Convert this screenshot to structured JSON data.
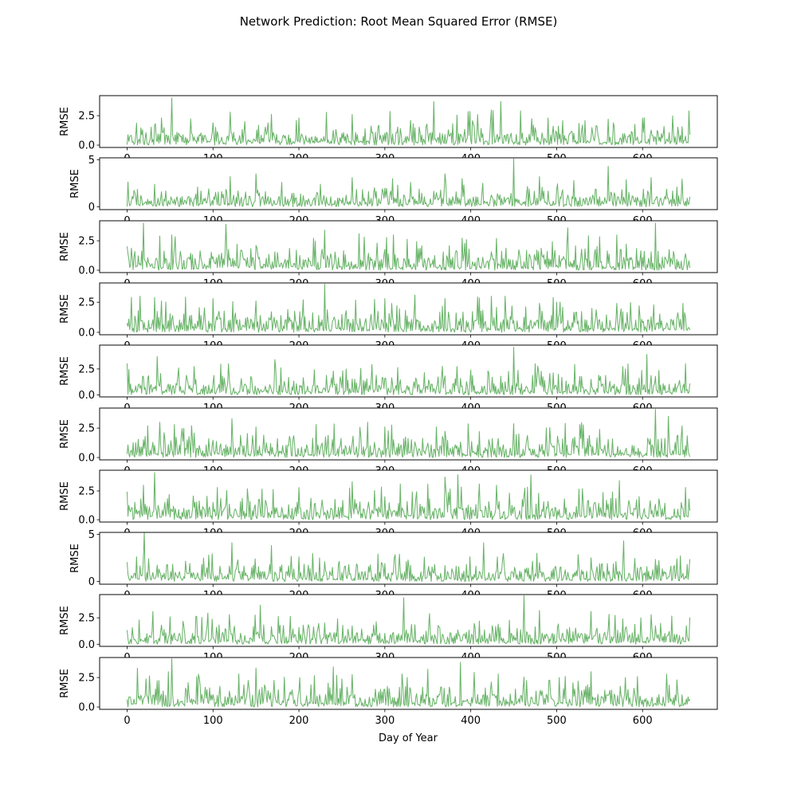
{
  "figure": {
    "title": "Network Prediction: Root Mean Squared Error (RMSE)",
    "line_color": "#6ab46a"
  },
  "chart_data": {
    "type": "line",
    "title": "Network Prediction: Root Mean Squared Error (RMSE)",
    "xlabel": "Day of Year",
    "ylabel": "RMSE",
    "x_range": [
      0,
      655
    ],
    "xlim": [
      -32,
      687
    ],
    "xticks": [
      0,
      100,
      200,
      300,
      400,
      500,
      600
    ],
    "grid": false,
    "panels": [
      {
        "ylim": [
          -0.2,
          4.2
        ],
        "yticks": [
          0.0,
          2.5
        ],
        "ytick_labels": [
          "0.0",
          "2.5"
        ],
        "max": 4.0,
        "peaks": [
          [
            52,
            4.0
          ],
          [
            18,
            1.3
          ],
          [
            40,
            2.3
          ],
          [
            100,
            1.9
          ],
          [
            120,
            2.8
          ],
          [
            200,
            2.3
          ],
          [
            262,
            2.6
          ],
          [
            330,
            2.1
          ],
          [
            357,
            3.7
          ],
          [
            408,
            2.6
          ],
          [
            435,
            3.7
          ],
          [
            458,
            2.9
          ],
          [
            490,
            2.3
          ],
          [
            560,
            2.2
          ],
          [
            600,
            2.3
          ],
          [
            654,
            2.9
          ]
        ]
      },
      {
        "ylim": [
          -0.3,
          5.2
        ],
        "yticks": [
          0,
          5
        ],
        "ytick_labels": [
          "0",
          "5"
        ],
        "max": 5.1,
        "peaks": [
          [
            40,
            1.6
          ],
          [
            95,
            1.9
          ],
          [
            120,
            3.2
          ],
          [
            150,
            3.5
          ],
          [
            180,
            2.6
          ],
          [
            225,
            2.4
          ],
          [
            262,
            3.1
          ],
          [
            330,
            2.6
          ],
          [
            370,
            3.5
          ],
          [
            390,
            3.0
          ],
          [
            450,
            5.1
          ],
          [
            480,
            3.2
          ],
          [
            520,
            2.8
          ],
          [
            560,
            4.3
          ],
          [
            610,
            3.1
          ],
          [
            640,
            2.1
          ]
        ]
      },
      {
        "ylim": [
          -0.2,
          4.2
        ],
        "yticks": [
          0.0,
          2.5
        ],
        "ytick_labels": [
          "0.0",
          "2.5"
        ],
        "max": 4.0,
        "peaks": [
          [
            0,
            2.0
          ],
          [
            19,
            4.0
          ],
          [
            38,
            2.9
          ],
          [
            52,
            3.0
          ],
          [
            115,
            3.9
          ],
          [
            150,
            2.1
          ],
          [
            230,
            3.4
          ],
          [
            270,
            3.1
          ],
          [
            310,
            3.0
          ],
          [
            395,
            2.6
          ],
          [
            430,
            2.7
          ],
          [
            513,
            3.6
          ],
          [
            570,
            3.0
          ],
          [
            615,
            4.0
          ],
          [
            650,
            1.4
          ]
        ]
      },
      {
        "ylim": [
          -0.2,
          4.1
        ],
        "yticks": [
          0.0,
          2.5
        ],
        "ytick_labels": [
          "0.0",
          "2.5"
        ],
        "max": 4.0,
        "peaks": [
          [
            5,
            2.9
          ],
          [
            15,
            3.0
          ],
          [
            40,
            2.6
          ],
          [
            100,
            2.8
          ],
          [
            150,
            2.6
          ],
          [
            205,
            2.7
          ],
          [
            230,
            4.0
          ],
          [
            300,
            2.8
          ],
          [
            335,
            3.1
          ],
          [
            370,
            2.8
          ],
          [
            440,
            3.0
          ],
          [
            500,
            2.5
          ],
          [
            570,
            2.4
          ],
          [
            640,
            1.2
          ]
        ]
      },
      {
        "ylim": [
          -0.2,
          4.8
        ],
        "yticks": [
          0.0,
          2.5
        ],
        "ytick_labels": [
          "0.0",
          "2.5"
        ],
        "max": 4.6,
        "peaks": [
          [
            0,
            3.0
          ],
          [
            35,
            3.7
          ],
          [
            60,
            2.6
          ],
          [
            118,
            3.0
          ],
          [
            172,
            3.4
          ],
          [
            240,
            2.3
          ],
          [
            300,
            1.6
          ],
          [
            420,
            2.3
          ],
          [
            450,
            4.6
          ],
          [
            475,
            3.0
          ],
          [
            580,
            2.5
          ],
          [
            605,
            3.9
          ],
          [
            650,
            3.0
          ]
        ]
      },
      {
        "ylim": [
          -0.2,
          4.2
        ],
        "yticks": [
          0.0,
          2.5
        ],
        "ytick_labels": [
          "0.0",
          "2.5"
        ],
        "max": 4.1,
        "peaks": [
          [
            38,
            3.0
          ],
          [
            55,
            2.8
          ],
          [
            122,
            3.3
          ],
          [
            150,
            2.6
          ],
          [
            220,
            2.8
          ],
          [
            280,
            3.0
          ],
          [
            300,
            2.6
          ],
          [
            360,
            2.6
          ],
          [
            410,
            2.2
          ],
          [
            510,
            2.9
          ],
          [
            550,
            2.4
          ],
          [
            615,
            4.1
          ],
          [
            630,
            3.5
          ],
          [
            640,
            1.8
          ]
        ]
      },
      {
        "ylim": [
          -0.2,
          4.3
        ],
        "yticks": [
          0.0,
          2.5
        ],
        "ytick_labels": [
          "0.0",
          "2.5"
        ],
        "max": 4.1,
        "peaks": [
          [
            0,
            2.4
          ],
          [
            32,
            4.1
          ],
          [
            105,
            2.8
          ],
          [
            140,
            2.7
          ],
          [
            200,
            2.8
          ],
          [
            262,
            3.3
          ],
          [
            318,
            3.1
          ],
          [
            350,
            3.1
          ],
          [
            370,
            3.7
          ],
          [
            385,
            3.9
          ],
          [
            410,
            3.1
          ],
          [
            430,
            3.0
          ],
          [
            470,
            3.9
          ],
          [
            530,
            2.7
          ],
          [
            573,
            3.4
          ],
          [
            650,
            2.8
          ]
        ]
      },
      {
        "ylim": [
          -0.3,
          5.2
        ],
        "yticks": [
          0,
          5
        ],
        "ytick_labels": [
          "0",
          "5"
        ],
        "max": 5.2,
        "peaks": [
          [
            0,
            2.0
          ],
          [
            20,
            5.2
          ],
          [
            95,
            2.8
          ],
          [
            122,
            4.1
          ],
          [
            168,
            3.8
          ],
          [
            230,
            2.1
          ],
          [
            300,
            1.9
          ],
          [
            325,
            2.1
          ],
          [
            415,
            4.1
          ],
          [
            480,
            2.0
          ],
          [
            540,
            2.5
          ],
          [
            578,
            4.3
          ],
          [
            640,
            2.4
          ],
          [
            652,
            1.8
          ]
        ]
      },
      {
        "ylim": [
          -0.2,
          4.7
        ],
        "yticks": [
          0.0,
          2.5
        ],
        "ytick_labels": [
          "0.0",
          "2.5"
        ],
        "max": 4.6,
        "peaks": [
          [
            30,
            3.1
          ],
          [
            50,
            2.6
          ],
          [
            80,
            2.6
          ],
          [
            155,
            3.7
          ],
          [
            200,
            1.6
          ],
          [
            245,
            2.4
          ],
          [
            322,
            4.4
          ],
          [
            352,
            2.9
          ],
          [
            410,
            2.2
          ],
          [
            462,
            4.6
          ],
          [
            480,
            3.2
          ],
          [
            540,
            3.1
          ],
          [
            577,
            2.4
          ],
          [
            610,
            2.8
          ],
          [
            655,
            2.5
          ]
        ]
      },
      {
        "ylim": [
          -0.2,
          4.2
        ],
        "yticks": [
          0.0,
          2.5
        ],
        "ytick_labels": [
          "0.0",
          "2.5"
        ],
        "max": 4.1,
        "peaks": [
          [
            12,
            3.3
          ],
          [
            48,
            3.0
          ],
          [
            52,
            4.1
          ],
          [
            130,
            2.8
          ],
          [
            150,
            3.3
          ],
          [
            240,
            3.4
          ],
          [
            320,
            2.8
          ],
          [
            350,
            3.2
          ],
          [
            388,
            3.8
          ],
          [
            432,
            2.8
          ],
          [
            510,
            2.6
          ],
          [
            540,
            3.0
          ],
          [
            580,
            2.5
          ],
          [
            640,
            2.3
          ]
        ]
      }
    ]
  }
}
